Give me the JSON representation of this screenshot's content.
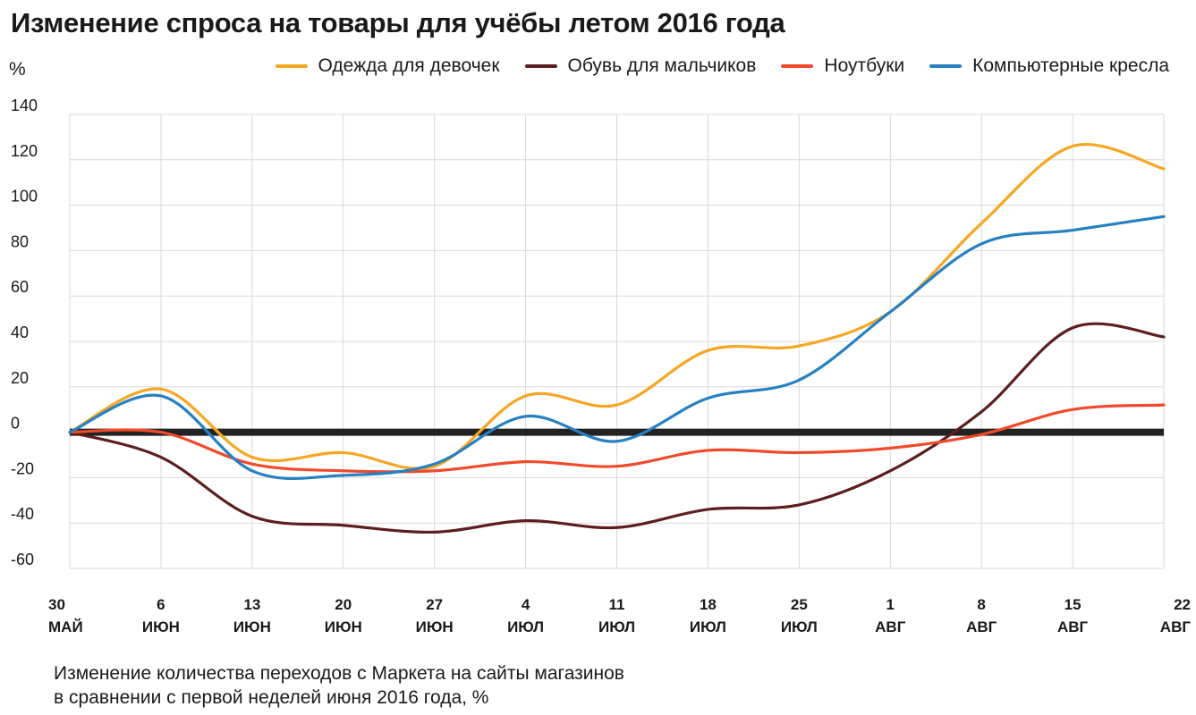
{
  "header": {
    "title": "Изменение спроса на товары для учёбы летом 2016 года",
    "unit": "%"
  },
  "caption": {
    "line1": "Изменение количества переходов с Маркета на сайты магазинов",
    "line2": "в сравнении с первой неделей июня 2016 года, %"
  },
  "chart_data": {
    "type": "line",
    "title": "Изменение спроса на товары для учёбы летом 2016 года",
    "ylabel": "%",
    "ylim": [
      -60,
      140
    ],
    "yticks": [
      140,
      120,
      100,
      80,
      60,
      40,
      20,
      0,
      -20,
      -40,
      -60
    ],
    "grid": true,
    "legend_position": "top-right",
    "categories": [
      {
        "day": "30",
        "month": "МАЙ"
      },
      {
        "day": "6",
        "month": "ИЮН"
      },
      {
        "day": "13",
        "month": "ИЮН"
      },
      {
        "day": "20",
        "month": "ИЮН"
      },
      {
        "day": "27",
        "month": "ИЮН"
      },
      {
        "day": "4",
        "month": "ИЮЛ"
      },
      {
        "day": "11",
        "month": "ИЮЛ"
      },
      {
        "day": "18",
        "month": "ИЮЛ"
      },
      {
        "day": "25",
        "month": "ИЮЛ"
      },
      {
        "day": "1",
        "month": "АВГ"
      },
      {
        "day": "8",
        "month": "АВГ"
      },
      {
        "day": "15",
        "month": "АВГ"
      },
      {
        "day": "22",
        "month": "АВГ"
      }
    ],
    "series": [
      {
        "name": "Одежда для девочек",
        "color": "#f5a623",
        "values": [
          0,
          19,
          -11,
          -9,
          -15,
          16,
          12,
          36,
          38,
          53,
          92,
          126,
          116
        ]
      },
      {
        "name": "Обувь для мальчиков",
        "color": "#5c1e1e",
        "values": [
          0,
          -11,
          -37,
          -41,
          -44,
          -39,
          -42,
          -34,
          -32,
          -17,
          9,
          46,
          42
        ]
      },
      {
        "name": "Ноутбуки",
        "color": "#f04a2b",
        "values": [
          0,
          0,
          -14,
          -17,
          -17,
          -13,
          -15,
          -8,
          -9,
          -7,
          -1,
          10,
          12
        ]
      },
      {
        "name": "Компьютерные кресла",
        "color": "#2680c2",
        "values": [
          0,
          16,
          -17,
          -19,
          -14,
          7,
          -4,
          15,
          23,
          53,
          83,
          89,
          95
        ]
      }
    ],
    "baseline": {
      "value": 0,
      "color": "#222222"
    }
  }
}
